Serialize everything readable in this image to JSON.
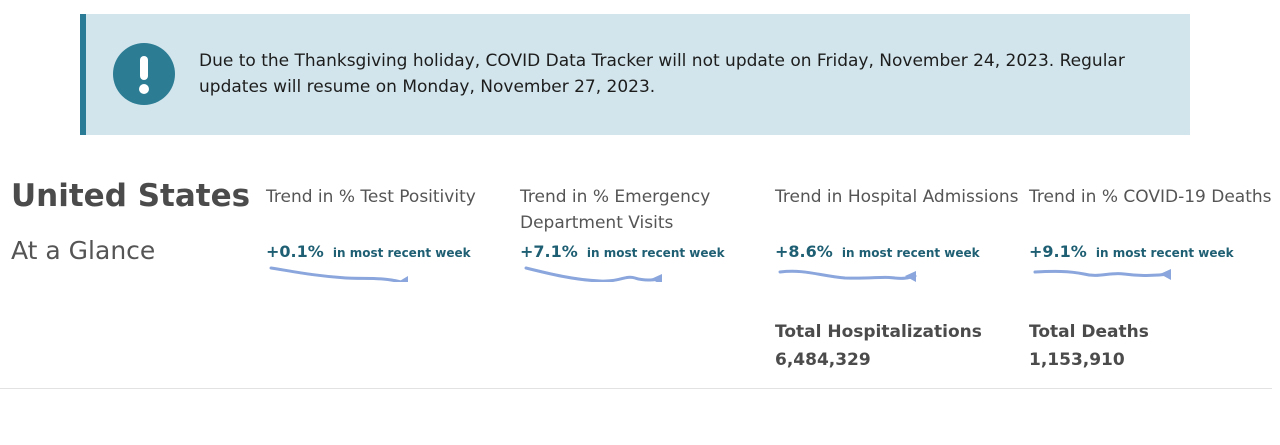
{
  "alert": {
    "icon": "exclamation-icon",
    "text": "Due to the Thanksgiving holiday, COVID Data Tracker will not update on Friday, November 24, 2023. Regular updates will resume on Monday, November 27, 2023.",
    "colors": {
      "background": "#d2e5ec",
      "accent": "#2a7b95"
    }
  },
  "header": {
    "title": "United States",
    "subtitle": "At a Glance"
  },
  "metrics": [
    {
      "label": "Trend in % Test Positivity",
      "change": "+0.1%",
      "period": "in most recent week"
    },
    {
      "label": "Trend in % Emergency Department Visits",
      "change": "+7.1%",
      "period": "in most recent week"
    },
    {
      "label": "Trend in Hospital Admissions",
      "change": "+8.6%",
      "period": "in most recent week"
    },
    {
      "label": "Trend in % COVID-19 Deaths",
      "change": "+9.1%",
      "period": "in most recent week"
    }
  ],
  "totals": [
    {
      "label": "Total Hospitalizations",
      "value": "6,484,329"
    },
    {
      "label": "Total Deaths",
      "value": "1,153,910"
    }
  ],
  "colors": {
    "sparkline": "#8aa6dc",
    "change_text": "#1f5f73"
  }
}
